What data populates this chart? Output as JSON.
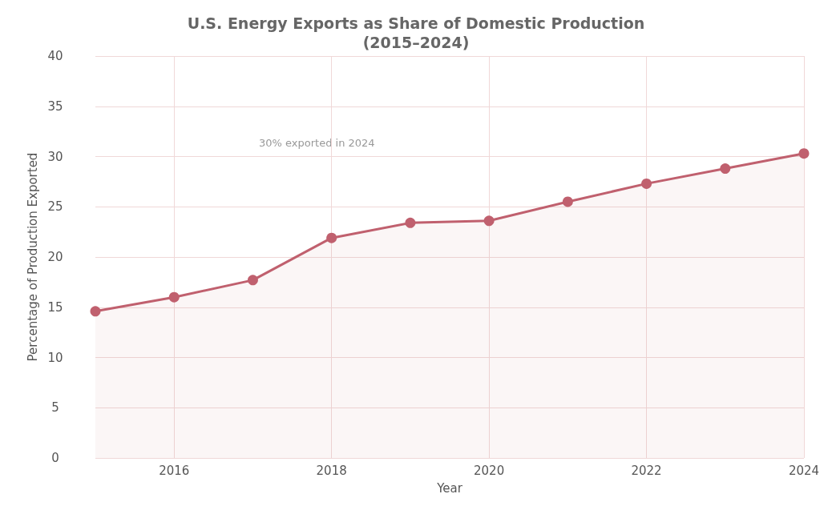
{
  "chart_data": {
    "type": "area",
    "title": "U.S. Energy Exports as Share of Domestic Production\n(2015–2024)",
    "xlabel": "Year",
    "ylabel": "Percentage of Production Exported",
    "x": [
      2015,
      2016,
      2017,
      2018,
      2019,
      2020,
      2021,
      2022,
      2023,
      2024
    ],
    "series": [
      {
        "color": "#c0606e",
        "values": [
          14.6,
          16.0,
          17.7,
          21.9,
          23.4,
          23.6,
          25.5,
          27.3,
          28.8,
          30.3
        ]
      }
    ],
    "xlim": [
      2015,
      2024
    ],
    "xticks": [
      2016,
      2018,
      2020,
      2022,
      2024
    ],
    "ylim": [
      0,
      40
    ],
    "yticks": [
      0,
      5,
      10,
      15,
      20,
      25,
      30,
      35,
      40
    ],
    "annotations": [
      "30% exported in 2024"
    ],
    "grid": true,
    "marker": "circle",
    "line_style": "solid"
  }
}
